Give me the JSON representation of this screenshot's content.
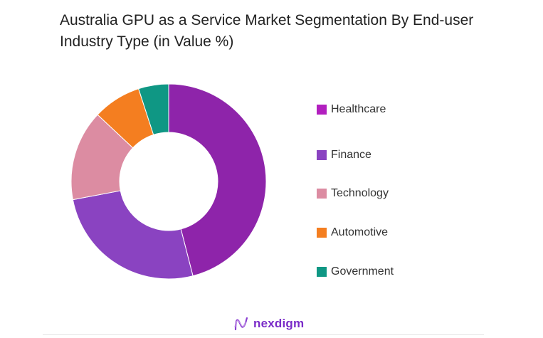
{
  "chart_data": {
    "type": "pie",
    "variant": "donut",
    "title": "Australia GPU as a Service Market Segmentation By End-user Industry Type (in Value %)",
    "legend_position": "right",
    "categories": [
      "Healthcare",
      "Finance",
      "Technology",
      "Automotive",
      "Government"
    ],
    "values": [
      46,
      26,
      15,
      8,
      5
    ],
    "colors": [
      "#8E24AA",
      "#8A43C1",
      "#DC8CA2",
      "#F47E20",
      "#0F9784"
    ],
    "legend_colors": [
      "#B21FBF",
      "#8A43C1",
      "#DC8CA2",
      "#F47E20",
      "#0F9784"
    ]
  },
  "brand": {
    "name": "nexdigm"
  }
}
